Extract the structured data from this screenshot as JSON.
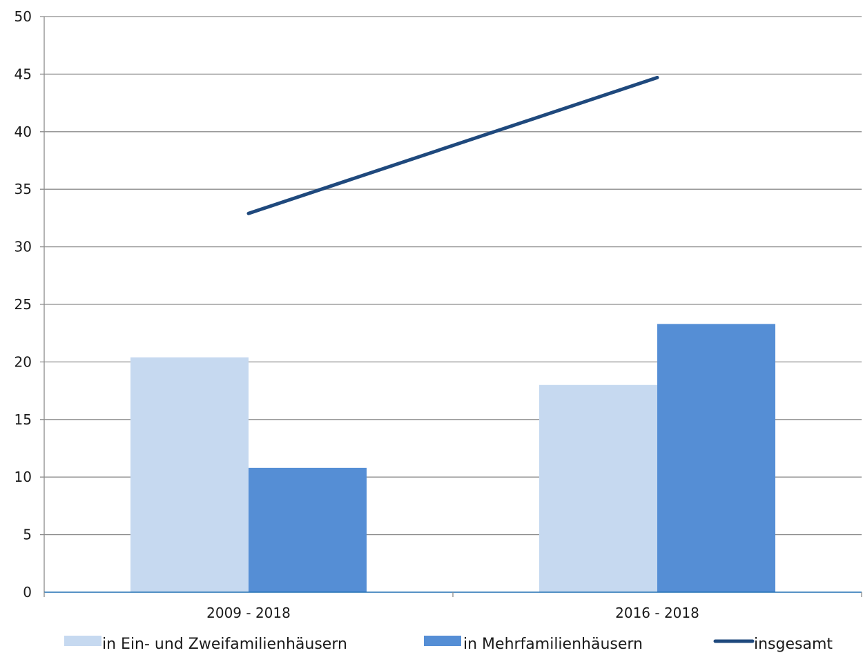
{
  "chart_data": {
    "type": "bar",
    "categories": [
      "2009 - 2018",
      "2016 - 2018"
    ],
    "series": [
      {
        "name": "in Ein- und Zweifamilienhäusern",
        "type": "bar",
        "color": "#c6d9f0",
        "values": [
          20.4,
          18.0
        ]
      },
      {
        "name": "in Mehrfamilienhäusern",
        "type": "bar",
        "color": "#558ed5",
        "values": [
          10.8,
          23.3
        ]
      },
      {
        "name": "insgesamt",
        "type": "line",
        "color": "#1f497d",
        "values": [
          32.9,
          44.7
        ]
      }
    ],
    "ylim": [
      0,
      50
    ],
    "yticks": [
      "0",
      "5",
      "10",
      "15",
      "20",
      "25",
      "30",
      "35",
      "40",
      "45",
      "50"
    ],
    "grid": true,
    "legend_position": "bottom",
    "axis_color": "#1f6fb2",
    "grid_color": "#8c8c8c"
  }
}
